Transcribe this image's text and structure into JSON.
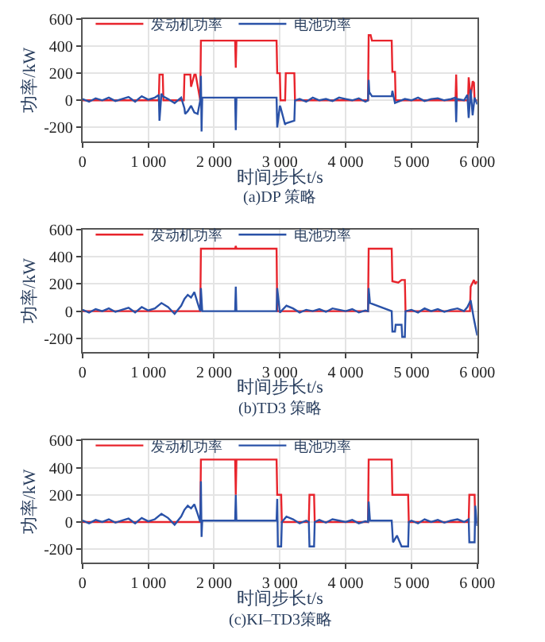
{
  "chart_data": [
    {
      "type": "line",
      "title": "(a)DP 策略",
      "xlabel": "时间步长t/s",
      "ylabel": "功率/kW",
      "xlim": [
        0,
        6000
      ],
      "ylim": [
        -300,
        600
      ],
      "xticks": [
        0,
        {
          "value": 1000,
          "label": "1 000"
        },
        {
          "value": 2000,
          "label": "2 000"
        },
        {
          "value": 3000,
          "label": "3 000"
        },
        {
          "value": 4000,
          "label": "4 000"
        },
        {
          "value": 5000,
          "label": "5 000"
        },
        {
          "value": 6000,
          "label": "6 000"
        }
      ],
      "yticks": [
        -200,
        0,
        200,
        400,
        600
      ],
      "grid": true,
      "legend": "top left",
      "marker": "none",
      "line_style": "solid",
      "series": [
        {
          "name": "发动机功率",
          "color": "#e8242c",
          "x": [
            0,
            1160,
            1170,
            1220,
            1230,
            1540,
            1550,
            1640,
            1650,
            1700,
            1720,
            1790,
            1800,
            2320,
            2330,
            2340,
            2950,
            2960,
            3000,
            3010,
            3080,
            3090,
            3220,
            3230,
            4340,
            4350,
            4380,
            4400,
            4700,
            4710,
            4750,
            4760,
            5670,
            5680,
            5690,
            5860,
            5870,
            5900,
            5930,
            5950,
            5960,
            6000
          ],
          "values": [
            0,
            0,
            190,
            190,
            0,
            0,
            190,
            190,
            100,
            190,
            190,
            0,
            440,
            440,
            240,
            440,
            440,
            200,
            200,
            0,
            0,
            200,
            200,
            0,
            0,
            480,
            480,
            440,
            440,
            210,
            210,
            0,
            0,
            190,
            0,
            0,
            170,
            20,
            140,
            130,
            0,
            0
          ]
        },
        {
          "name": "电池功率",
          "color": "#2a52a8",
          "x": [
            0,
            100,
            200,
            300,
            400,
            500,
            600,
            700,
            800,
            900,
            1000,
            1100,
            1160,
            1170,
            1200,
            1220,
            1300,
            1400,
            1500,
            1550,
            1560,
            1600,
            1650,
            1700,
            1750,
            1790,
            1800,
            1810,
            1820,
            2320,
            2330,
            2340,
            2950,
            2960,
            3000,
            3010,
            3080,
            3090,
            3220,
            3230,
            3300,
            3400,
            3500,
            3600,
            3700,
            3800,
            3900,
            4000,
            4100,
            4200,
            4300,
            4340,
            4350,
            4360,
            4400,
            4700,
            4710,
            4750,
            4800,
            4900,
            5000,
            5100,
            5200,
            5300,
            5400,
            5500,
            5600,
            5670,
            5680,
            5690,
            5800,
            5850,
            5870,
            5900,
            5930,
            5960,
            6000
          ],
          "values": [
            10,
            -10,
            15,
            0,
            20,
            -5,
            10,
            25,
            -10,
            30,
            5,
            20,
            40,
            -150,
            50,
            30,
            10,
            -20,
            20,
            -60,
            -100,
            -80,
            -40,
            -90,
            -100,
            0,
            180,
            -230,
            20,
            20,
            -220,
            20,
            20,
            -200,
            -40,
            -50,
            -180,
            -170,
            -150,
            0,
            10,
            -10,
            20,
            0,
            10,
            -5,
            20,
            10,
            0,
            15,
            -10,
            0,
            150,
            60,
            30,
            30,
            70,
            -20,
            -10,
            10,
            0,
            20,
            -5,
            10,
            15,
            0,
            10,
            20,
            -160,
            10,
            0,
            40,
            -130,
            80,
            -110,
            20,
            -30
          ]
        }
      ]
    },
    {
      "type": "line",
      "title": "(b)TD3 策略",
      "xlabel": "时间步长t/s",
      "ylabel": "功率/kW",
      "xlim": [
        0,
        6000
      ],
      "ylim": [
        -300,
        600
      ],
      "xticks": [
        0,
        {
          "value": 1000,
          "label": "1 000"
        },
        {
          "value": 2000,
          "label": "2 000"
        },
        {
          "value": 3000,
          "label": "3 000"
        },
        {
          "value": 4000,
          "label": "4 000"
        },
        {
          "value": 5000,
          "label": "5 000"
        },
        {
          "value": 6000,
          "label": "6 000"
        }
      ],
      "yticks": [
        -200,
        0,
        200,
        400,
        600
      ],
      "grid": true,
      "legend": "top left",
      "marker": "none",
      "line_style": "solid",
      "series": [
        {
          "name": "发动机功率",
          "color": "#e8242c",
          "x": [
            0,
            1790,
            1800,
            2320,
            2330,
            2340,
            2950,
            2960,
            4340,
            4350,
            4700,
            4710,
            4800,
            4850,
            4900,
            4910,
            5890,
            5900,
            5950,
            5970,
            6000
          ],
          "values": [
            0,
            0,
            460,
            460,
            480,
            460,
            460,
            0,
            0,
            460,
            460,
            220,
            210,
            230,
            230,
            0,
            0,
            180,
            230,
            200,
            220
          ]
        },
        {
          "name": "电池功率",
          "color": "#2a52a8",
          "x": [
            0,
            100,
            200,
            300,
            400,
            500,
            600,
            700,
            800,
            900,
            1000,
            1100,
            1200,
            1300,
            1400,
            1500,
            1550,
            1600,
            1650,
            1700,
            1750,
            1790,
            1800,
            1820,
            2320,
            2330,
            2340,
            2950,
            2960,
            3000,
            3100,
            3200,
            3300,
            3400,
            3500,
            3600,
            3700,
            3800,
            3900,
            4000,
            4100,
            4200,
            4300,
            4340,
            4350,
            4370,
            4700,
            4710,
            4750,
            4760,
            4850,
            4860,
            4900,
            4910,
            5000,
            5100,
            5200,
            5300,
            5400,
            5500,
            5600,
            5700,
            5800,
            5850,
            5900,
            5950,
            6000
          ],
          "values": [
            10,
            -10,
            15,
            0,
            20,
            -5,
            10,
            25,
            -10,
            30,
            5,
            20,
            60,
            30,
            -20,
            40,
            90,
            120,
            100,
            140,
            60,
            0,
            170,
            0,
            0,
            180,
            0,
            0,
            170,
            -10,
            40,
            20,
            -10,
            10,
            0,
            15,
            -5,
            20,
            10,
            0,
            15,
            -10,
            5,
            0,
            170,
            60,
            0,
            -150,
            -150,
            -100,
            -100,
            -190,
            -190,
            0,
            10,
            -10,
            20,
            0,
            15,
            -5,
            10,
            20,
            0,
            30,
            80,
            -60,
            -180
          ]
        }
      ]
    },
    {
      "type": "line",
      "title": "(c)KI–TD3策略",
      "xlabel": "时间步长t/s",
      "ylabel": "功率/kW",
      "xlim": [
        0,
        6000
      ],
      "ylim": [
        -300,
        600
      ],
      "xticks": [
        0,
        {
          "value": 1000,
          "label": "1 000"
        },
        {
          "value": 2000,
          "label": "2 000"
        },
        {
          "value": 3000,
          "label": "3 000"
        },
        {
          "value": 4000,
          "label": "4 000"
        },
        {
          "value": 5000,
          "label": "5 000"
        },
        {
          "value": 6000,
          "label": "6 000"
        }
      ],
      "yticks": [
        -200,
        0,
        200,
        400,
        600
      ],
      "grid": true,
      "legend": "top left",
      "marker": "none",
      "line_style": "solid",
      "series": [
        {
          "name": "发动机功率",
          "color": "#e8242c",
          "x": [
            0,
            1790,
            1800,
            2320,
            2330,
            2340,
            2950,
            2960,
            3020,
            3030,
            3440,
            3450,
            3520,
            3530,
            4340,
            4350,
            4700,
            4710,
            4950,
            4960,
            5870,
            5880,
            5960,
            5970,
            6000
          ],
          "values": [
            0,
            0,
            460,
            460,
            200,
            460,
            460,
            200,
            200,
            0,
            0,
            200,
            200,
            0,
            0,
            460,
            460,
            200,
            200,
            0,
            0,
            200,
            200,
            0,
            0
          ]
        },
        {
          "name": "电池功率",
          "color": "#2a52a8",
          "x": [
            0,
            100,
            200,
            300,
            400,
            500,
            600,
            700,
            800,
            900,
            1000,
            1100,
            1200,
            1300,
            1400,
            1500,
            1550,
            1600,
            1650,
            1700,
            1750,
            1790,
            1800,
            1810,
            1820,
            2320,
            2330,
            2340,
            2950,
            2960,
            2970,
            3020,
            3030,
            3100,
            3200,
            3300,
            3400,
            3440,
            3450,
            3520,
            3530,
            3600,
            3700,
            3800,
            3900,
            4000,
            4100,
            4200,
            4300,
            4340,
            4350,
            4370,
            4700,
            4720,
            4780,
            4850,
            4950,
            4960,
            5000,
            5100,
            5200,
            5300,
            5400,
            5500,
            5600,
            5700,
            5800,
            5870,
            5880,
            5960,
            5970,
            6000
          ],
          "values": [
            10,
            -10,
            15,
            0,
            20,
            -5,
            10,
            25,
            -10,
            30,
            5,
            20,
            60,
            30,
            -20,
            40,
            90,
            120,
            100,
            130,
            60,
            0,
            300,
            -110,
            10,
            10,
            200,
            10,
            10,
            170,
            -180,
            -180,
            0,
            40,
            20,
            -10,
            10,
            0,
            -180,
            -180,
            0,
            15,
            -5,
            20,
            10,
            0,
            15,
            -10,
            5,
            0,
            150,
            10,
            10,
            -150,
            -100,
            -180,
            -180,
            0,
            10,
            -10,
            20,
            0,
            15,
            -5,
            10,
            20,
            0,
            20,
            -150,
            -150,
            120,
            -30
          ]
        }
      ]
    }
  ]
}
